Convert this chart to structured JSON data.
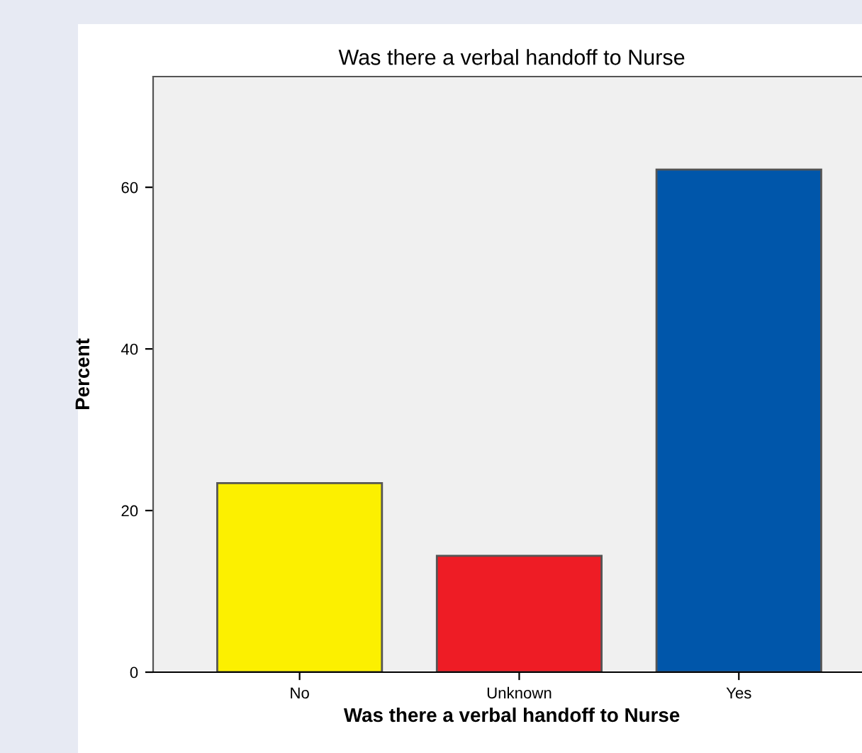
{
  "chart_data": {
    "type": "bar",
    "title": "Was there a verbal handoff to Nurse",
    "xlabel": "Was there a verbal handoff to Nurse",
    "ylabel": "Percent",
    "categories": [
      "No",
      "Unknown",
      "Yes"
    ],
    "values": [
      23.4,
      14.4,
      62.2
    ],
    "colors": [
      "#fcf000",
      "#ee1c25",
      "#0056aa"
    ],
    "ylim": [
      0,
      73.7
    ],
    "yticks": [
      0,
      20,
      40,
      60
    ],
    "grid": false,
    "legend": false
  }
}
